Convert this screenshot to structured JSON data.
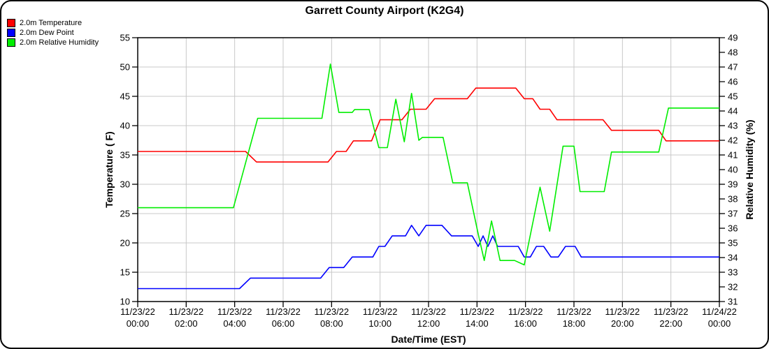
{
  "window": {
    "title": "Garrett County Airport (K2G4)"
  },
  "chart_data": {
    "type": "line",
    "title": "Garrett County Airport (K2G4)",
    "xlabel": "Date/Time (EST)",
    "ylabel_left": "Temperature ( F)",
    "ylabel_right": "Relative Humidity (%)",
    "x_unit_hours_from": "11/23/22 00:00 EST",
    "xlim_hours": [
      0,
      24
    ],
    "ylim_left": [
      10,
      55
    ],
    "ylim_right": [
      31,
      49
    ],
    "y_ticks_left": [
      55,
      50,
      45,
      40,
      35,
      30,
      25,
      20,
      15,
      10
    ],
    "y_ticks_right": [
      49,
      48,
      47,
      46,
      45,
      44,
      43,
      42,
      41,
      40,
      39,
      38,
      37,
      36,
      35,
      34,
      33,
      32,
      31
    ],
    "x_ticks": [
      {
        "t": 0,
        "date": "11/23/22",
        "time": "00:00"
      },
      {
        "t": 2,
        "date": "11/23/22",
        "time": "02:00"
      },
      {
        "t": 4,
        "date": "11/23/22",
        "time": "04:00"
      },
      {
        "t": 6,
        "date": "11/23/22",
        "time": "06:00"
      },
      {
        "t": 8,
        "date": "11/23/22",
        "time": "08:00"
      },
      {
        "t": 10,
        "date": "11/23/22",
        "time": "10:00"
      },
      {
        "t": 12,
        "date": "11/23/22",
        "time": "12:00"
      },
      {
        "t": 14,
        "date": "11/23/22",
        "time": "14:00"
      },
      {
        "t": 16,
        "date": "11/23/22",
        "time": "16:00"
      },
      {
        "t": 18,
        "date": "11/23/22",
        "time": "18:00"
      },
      {
        "t": 20,
        "date": "11/23/22",
        "time": "20:00"
      },
      {
        "t": 22,
        "date": "11/23/22",
        "time": "22:00"
      },
      {
        "t": 24,
        "date": "11/24/22",
        "time": "00:00"
      }
    ],
    "grid": {
      "color": "#c8c8c8",
      "show": true
    },
    "axis_color": "#000000",
    "legend_position": "top-left",
    "series": [
      {
        "name": "2.0m Temperature",
        "color": "#ff0000",
        "axis": "left",
        "units": "F",
        "points": [
          [
            0,
            35.6
          ],
          [
            4.45,
            35.6
          ],
          [
            4.9,
            33.8
          ],
          [
            7.85,
            33.8
          ],
          [
            8.2,
            35.6
          ],
          [
            8.6,
            35.6
          ],
          [
            8.9,
            37.4
          ],
          [
            9.65,
            37.4
          ],
          [
            10,
            41
          ],
          [
            10.9,
            41
          ],
          [
            11.25,
            42.8
          ],
          [
            11.9,
            42.8
          ],
          [
            12.25,
            44.6
          ],
          [
            13.6,
            44.6
          ],
          [
            13.95,
            46.4
          ],
          [
            15.6,
            46.4
          ],
          [
            15.95,
            44.6
          ],
          [
            16.3,
            44.6
          ],
          [
            16.6,
            42.8
          ],
          [
            17,
            42.8
          ],
          [
            17.3,
            41
          ],
          [
            19.2,
            41
          ],
          [
            19.55,
            39.2
          ],
          [
            21.5,
            39.2
          ],
          [
            21.8,
            37.4
          ],
          [
            24,
            37.4
          ]
        ]
      },
      {
        "name": "2.0m Dew Point",
        "color": "#0000ff",
        "axis": "left",
        "units": "F",
        "points": [
          [
            0,
            12.2
          ],
          [
            4.2,
            12.2
          ],
          [
            4.65,
            14
          ],
          [
            7.55,
            14
          ],
          [
            7.9,
            15.8
          ],
          [
            8.5,
            15.8
          ],
          [
            8.85,
            17.6
          ],
          [
            9.7,
            17.6
          ],
          [
            9.95,
            19.4
          ],
          [
            10.2,
            19.4
          ],
          [
            10.5,
            21.2
          ],
          [
            11.05,
            21.2
          ],
          [
            11.3,
            23
          ],
          [
            11.6,
            21.2
          ],
          [
            11.9,
            23
          ],
          [
            12.55,
            23
          ],
          [
            12.95,
            21.2
          ],
          [
            13.8,
            21.2
          ],
          [
            14.05,
            19.4
          ],
          [
            14.25,
            21.2
          ],
          [
            14.45,
            19.4
          ],
          [
            14.65,
            21.2
          ],
          [
            14.85,
            19.4
          ],
          [
            15.7,
            19.4
          ],
          [
            15.95,
            17.6
          ],
          [
            16.2,
            17.6
          ],
          [
            16.45,
            19.4
          ],
          [
            16.75,
            19.4
          ],
          [
            17.05,
            17.6
          ],
          [
            17.35,
            17.6
          ],
          [
            17.65,
            19.4
          ],
          [
            18.05,
            19.4
          ],
          [
            18.3,
            17.6
          ],
          [
            24,
            17.6
          ]
        ]
      },
      {
        "name": "2.0m Relative Humidity",
        "color": "#00ee00",
        "axis": "right",
        "units": "%",
        "points": [
          [
            0,
            37.4
          ],
          [
            3.95,
            37.4
          ],
          [
            4.95,
            43.5
          ],
          [
            7.6,
            43.5
          ],
          [
            7.95,
            47.2
          ],
          [
            8.3,
            43.9
          ],
          [
            8.85,
            43.9
          ],
          [
            8.95,
            44.1
          ],
          [
            9.55,
            44.1
          ],
          [
            9.95,
            41.5
          ],
          [
            10.3,
            41.5
          ],
          [
            10.65,
            44.8
          ],
          [
            11,
            41.9
          ],
          [
            11.3,
            45.2
          ],
          [
            11.6,
            42
          ],
          [
            11.75,
            42.2
          ],
          [
            12.6,
            42.2
          ],
          [
            13,
            39.1
          ],
          [
            13.6,
            39.1
          ],
          [
            14.05,
            35.6
          ],
          [
            14.3,
            33.8
          ],
          [
            14.6,
            36.5
          ],
          [
            14.95,
            33.8
          ],
          [
            15.55,
            33.8
          ],
          [
            15.95,
            33.5
          ],
          [
            16.6,
            38.8
          ],
          [
            17,
            35.8
          ],
          [
            17.55,
            41.6
          ],
          [
            18,
            41.6
          ],
          [
            18.25,
            38.5
          ],
          [
            19.25,
            38.5
          ],
          [
            19.55,
            41.2
          ],
          [
            21.5,
            41.2
          ],
          [
            21.9,
            44.2
          ],
          [
            24,
            44.2
          ]
        ]
      }
    ]
  }
}
